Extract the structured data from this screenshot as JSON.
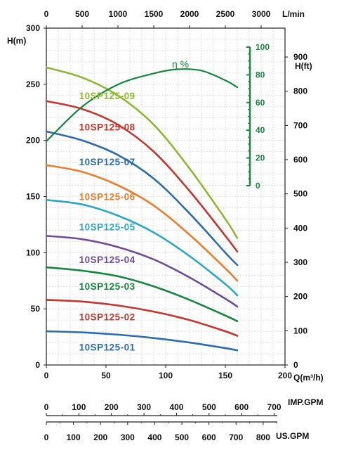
{
  "chart_data": {
    "type": "line",
    "grid": true,
    "axes": {
      "x_bottom": {
        "label": "Q(m³/h)",
        "min": 0,
        "max": 200,
        "ticks": [
          0,
          50,
          100,
          150,
          200
        ]
      },
      "x_top": {
        "label": "L/min",
        "min": 0,
        "max": 3333.3,
        "ticks": [
          0,
          500,
          1000,
          1500,
          2000,
          2500,
          3000
        ]
      },
      "y_left": {
        "label": "H(m)",
        "min": 0,
        "max": 300,
        "ticks": [
          0,
          50,
          100,
          150,
          200,
          250,
          300
        ]
      },
      "y_right": {
        "label": "H(ft)",
        "min": 0,
        "max": 984.3,
        "ticks": [
          0,
          100,
          200,
          300,
          400,
          500,
          600,
          700,
          800,
          900
        ]
      },
      "efficiency": {
        "label": "η %",
        "min": 0,
        "max": 100,
        "ticks": [
          0,
          20,
          40,
          60,
          80,
          100
        ]
      }
    },
    "imp_gpm_scale": {
      "label": "IMP.GPM",
      "ticks": [
        0,
        100,
        200,
        300,
        400,
        500,
        600,
        700
      ],
      "max": 733.3
    },
    "us_gpm_scale": {
      "label": "US.GPM",
      "ticks": [
        0,
        100,
        200,
        300,
        400,
        500,
        600,
        700,
        800
      ],
      "max": 880.6
    },
    "series": [
      {
        "name": "10SP125-09",
        "color": "#8db832",
        "points": [
          [
            0,
            265
          ],
          [
            30,
            256
          ],
          [
            60,
            240
          ],
          [
            90,
            214
          ],
          [
            120,
            175
          ],
          [
            150,
            130
          ],
          [
            160,
            113
          ]
        ]
      },
      {
        "name": "10SP125-08",
        "color": "#c8352c",
        "points": [
          [
            0,
            235
          ],
          [
            30,
            228
          ],
          [
            60,
            214
          ],
          [
            90,
            190
          ],
          [
            120,
            155
          ],
          [
            150,
            115
          ],
          [
            160,
            101
          ]
        ]
      },
      {
        "name": "10SP125-07",
        "color": "#2b6db0",
        "points": [
          [
            0,
            208
          ],
          [
            30,
            200
          ],
          [
            60,
            187
          ],
          [
            90,
            166
          ],
          [
            120,
            135
          ],
          [
            150,
            100
          ],
          [
            160,
            89
          ]
        ]
      },
      {
        "name": "10SP125-06",
        "color": "#ee7d2a",
        "points": [
          [
            0,
            178
          ],
          [
            30,
            172
          ],
          [
            60,
            160
          ],
          [
            90,
            142
          ],
          [
            120,
            116
          ],
          [
            150,
            86
          ],
          [
            160,
            75
          ]
        ]
      },
      {
        "name": "10SP125-05",
        "color": "#2aa8c8",
        "points": [
          [
            0,
            147
          ],
          [
            30,
            143
          ],
          [
            60,
            133
          ],
          [
            90,
            118
          ],
          [
            120,
            97
          ],
          [
            150,
            72
          ],
          [
            160,
            62
          ]
        ]
      },
      {
        "name": "10SP125-04",
        "color": "#6e4c9a",
        "points": [
          [
            0,
            115
          ],
          [
            30,
            112
          ],
          [
            60,
            105
          ],
          [
            90,
            94
          ],
          [
            120,
            78
          ],
          [
            150,
            59
          ],
          [
            160,
            52
          ]
        ]
      },
      {
        "name": "10SP125-03",
        "color": "#13883c",
        "points": [
          [
            0,
            87
          ],
          [
            30,
            84
          ],
          [
            60,
            79
          ],
          [
            90,
            70
          ],
          [
            120,
            58
          ],
          [
            150,
            44
          ],
          [
            160,
            39
          ]
        ]
      },
      {
        "name": "10SP125-02",
        "color": "#c8352c",
        "points": [
          [
            0,
            58
          ],
          [
            30,
            56.5
          ],
          [
            60,
            53
          ],
          [
            90,
            47.5
          ],
          [
            120,
            40
          ],
          [
            150,
            30
          ],
          [
            160,
            26
          ]
        ]
      },
      {
        "name": "10SP125-01",
        "color": "#2b6db0",
        "points": [
          [
            0,
            30
          ],
          [
            30,
            29
          ],
          [
            60,
            27
          ],
          [
            90,
            24
          ],
          [
            120,
            20
          ],
          [
            150,
            15
          ],
          [
            160,
            13
          ]
        ]
      }
    ],
    "efficiency_curve": {
      "name": "η %",
      "color": "#13883c",
      "points": [
        [
          0,
          32
        ],
        [
          30,
          57
        ],
        [
          60,
          73
        ],
        [
          90,
          81
        ],
        [
          110,
          84
        ],
        [
          130,
          83
        ],
        [
          150,
          76
        ],
        [
          160,
          71
        ]
      ]
    }
  }
}
